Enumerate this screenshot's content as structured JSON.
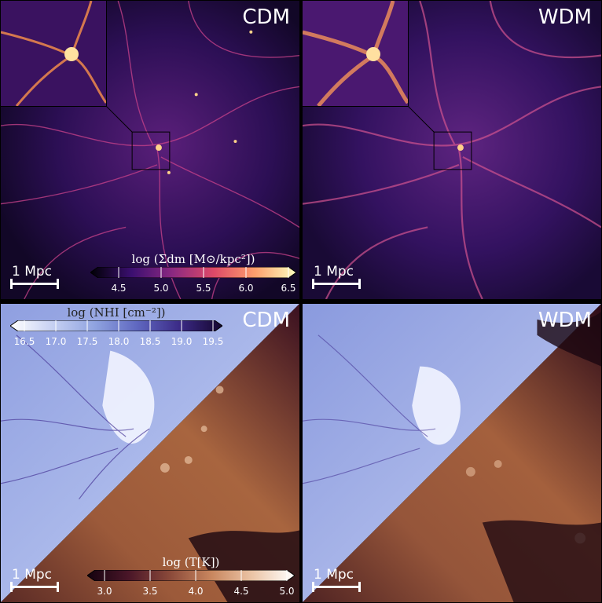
{
  "panels": {
    "top_left": {
      "label": "CDM",
      "scale_label": "1 Mpc"
    },
    "top_right": {
      "label": "WDM",
      "scale_label": "1 Mpc"
    },
    "bottom_left": {
      "label": "CDM",
      "scale_label": "1 Mpc"
    },
    "bottom_right": {
      "label": "WDM",
      "scale_label": "1 Mpc"
    }
  },
  "colorbars": {
    "dark_matter": {
      "title": "log (Σdm [M⊙/kpc²])",
      "ticks": [
        "4.5",
        "5.0",
        "5.5",
        "6.0",
        "6.5"
      ],
      "colors": [
        "#000004",
        "#3b0f70",
        "#8c2981",
        "#de4968",
        "#fe9f6d",
        "#fcfdbf"
      ]
    },
    "hi_column": {
      "title": "log (NHI [cm⁻²])",
      "ticks": [
        "16.5",
        "17.0",
        "17.5",
        "18.0",
        "18.5",
        "19.0",
        "19.5"
      ],
      "colors": [
        "#ffffff",
        "#c6d0f2",
        "#8fa3e0",
        "#5f67c0",
        "#3b2a86",
        "#15062e"
      ]
    },
    "temperature": {
      "title": "log (T[K])",
      "ticks": [
        "3.0",
        "3.5",
        "4.0",
        "4.5",
        "5.0"
      ],
      "colors": [
        "#14020f",
        "#4a1628",
        "#8b4a3a",
        "#c9875f",
        "#ecc6a8",
        "#ffffff"
      ]
    }
  }
}
